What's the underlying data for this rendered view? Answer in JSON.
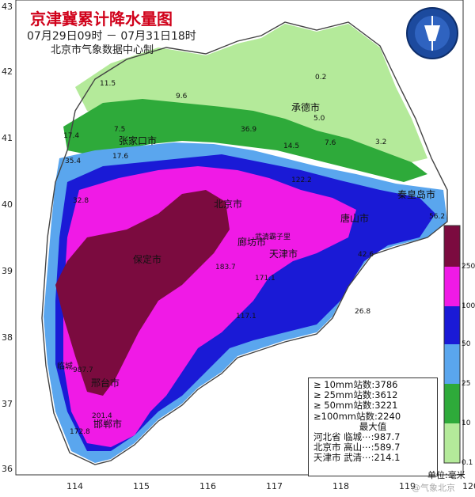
{
  "title": "京津冀累计降水量图",
  "subtitle": "07月29日09时 － 07月31日18时",
  "producer": "北京市气象数据中心制",
  "lon_ticks": [
    "114",
    "115",
    "116",
    "117",
    "118",
    "119",
    "120"
  ],
  "lat_ticks": [
    "43",
    "42",
    "41",
    "40",
    "39",
    "38",
    "37",
    "36"
  ],
  "legend": {
    "levels": [
      "250",
      "100",
      "50",
      "25",
      "10",
      "0.1"
    ],
    "colors": [
      "#7b0b3f",
      "#f01ae6",
      "#1a1ad6",
      "#5aa6ee",
      "#2eaa3a",
      "#b4ea9a"
    ],
    "unit": "单位:毫米"
  },
  "stats": {
    "line1": "≥ 10mm站数:3786",
    "line2": "≥ 25mm站数:3612",
    "line3": "≥ 50mm站数:3221",
    "line4": "≥100mm站数:2240",
    "header": "最大值",
    "row_hebei": "河北省 临城⋯:987.7",
    "row_beijing": "北京市 高山⋯:589.7",
    "row_tianjin": "天津市 武清⋯:214.1"
  },
  "cities": {
    "chengde": "承德市",
    "zhangjiakou": "张家口市",
    "qinhuangdao": "秦皇岛市",
    "beijing": "北京市",
    "tianjin": "天津市",
    "baoding": "保定市",
    "langfang": "廊坊市",
    "tangshan": "唐山市",
    "xingtai": "邢台市",
    "handan": "邯郸市",
    "linchen": "临城",
    "wuqingzi": "武清霸子里"
  },
  "values": {
    "v1": "11.5",
    "v2": "9.6",
    "v3": "0.2",
    "v4": "5.0",
    "v5": "7.5",
    "v6": "17.4",
    "v7": "36.9",
    "v8": "14.5",
    "v9": "7.6",
    "v10": "3.2",
    "v11": "35.4",
    "v12": "17.6",
    "v13": "32.8",
    "v14": "122.2",
    "v15": "56.2",
    "v16": "42.6",
    "v17": "26.8",
    "v18": "171.1",
    "v19": "183.7",
    "v20": "117.1",
    "v21": "987.7",
    "v22": "201.4",
    "v23": "172.8"
  },
  "watermark": "@气象北京",
  "logo_text": "BEIJING METEOROLOGICAL SERVICE"
}
